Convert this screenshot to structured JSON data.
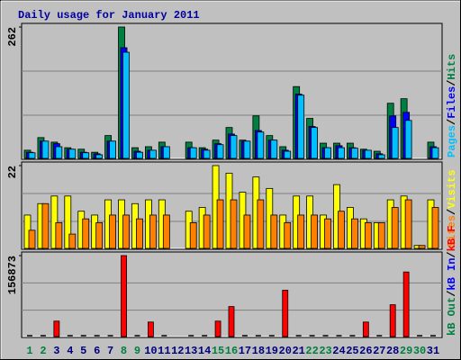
{
  "chart_data": [
    {
      "type": "bar",
      "title": "Daily usage for January 2011",
      "categories": [
        "1",
        "2",
        "3",
        "4",
        "5",
        "6",
        "7",
        "8",
        "9",
        "10",
        "11",
        "12",
        "13",
        "14",
        "15",
        "16",
        "17",
        "18",
        "19",
        "20",
        "21",
        "22",
        "23",
        "24",
        "25",
        "26",
        "27",
        "28",
        "29",
        "30",
        "31"
      ],
      "highlight_indices": [
        0,
        1,
        7,
        8,
        14,
        15,
        21,
        22,
        28,
        29
      ],
      "highlight_color": "#008040",
      "label_color": "#000080",
      "legend_separator": "/",
      "ylim": [
        0,
        262
      ],
      "yticks": [
        262
      ],
      "series": [
        {
          "name": "Hits",
          "color": "#008040",
          "values": [
            18,
            43,
            34,
            23,
            20,
            14,
            47,
            262,
            23,
            25,
            34,
            null,
            34,
            23,
            38,
            63,
            38,
            86,
            47,
            25,
            144,
            81,
            32,
            32,
            32,
            20,
            16,
            111,
            120,
            1,
            34
          ]
        },
        {
          "name": "Files",
          "color": "#0000FF",
          "values": [
            14,
            36,
            31,
            20,
            14,
            11,
            36,
            221,
            16,
            18,
            25,
            null,
            23,
            20,
            31,
            50,
            36,
            57,
            38,
            18,
            129,
            65,
            23,
            27,
            23,
            18,
            11,
            86,
            93,
            1,
            25
          ]
        },
        {
          "name": "Pages",
          "color": "#00C0FF",
          "values": [
            13,
            36,
            25,
            20,
            13,
            9,
            36,
            212,
            14,
            18,
            25,
            null,
            23,
            18,
            29,
            47,
            36,
            54,
            38,
            16,
            127,
            63,
            23,
            23,
            22,
            18,
            9,
            63,
            77,
            1,
            23
          ]
        }
      ]
    },
    {
      "type": "bar",
      "ylim": [
        0,
        22
      ],
      "yticks": [
        22
      ],
      "legend_separator": "/",
      "series": [
        {
          "name": "Visits",
          "color": "#FFFF00",
          "values": [
            9,
            12,
            14,
            14,
            10,
            9,
            13,
            13,
            12,
            13,
            13,
            null,
            10,
            11,
            22,
            20,
            15,
            19,
            16,
            9,
            14,
            14,
            9,
            17,
            11,
            8,
            7,
            13,
            14,
            1,
            13
          ]
        },
        {
          "name": "Sites",
          "color": "#FF8000",
          "values": [
            5,
            12,
            7,
            4,
            8,
            7,
            9,
            9,
            8,
            9,
            9,
            null,
            7,
            9,
            13,
            13,
            9,
            13,
            9,
            7,
            9,
            9,
            8,
            10,
            8,
            7,
            7,
            11,
            13,
            1,
            11
          ]
        }
      ]
    },
    {
      "type": "bar",
      "ylim": [
        0,
        156873
      ],
      "yticks": [
        156873
      ],
      "legend_separator": "/",
      "series": [
        {
          "name": "kB F",
          "color": "#FF0000",
          "values": [
            0,
            0,
            31375,
            0,
            0,
            0,
            0,
            156873,
            0,
            29600,
            0,
            null,
            0,
            0,
            31375,
            59263,
            0,
            0,
            0,
            90638,
            0,
            0,
            0,
            0,
            0,
            29600,
            0,
            62750,
            125500,
            0,
            0
          ]
        }
      ],
      "extra_legend": [
        {
          "name": "kB In",
          "color": "#0000FF"
        },
        {
          "name": "kB Out",
          "color": "#008040"
        }
      ]
    }
  ]
}
